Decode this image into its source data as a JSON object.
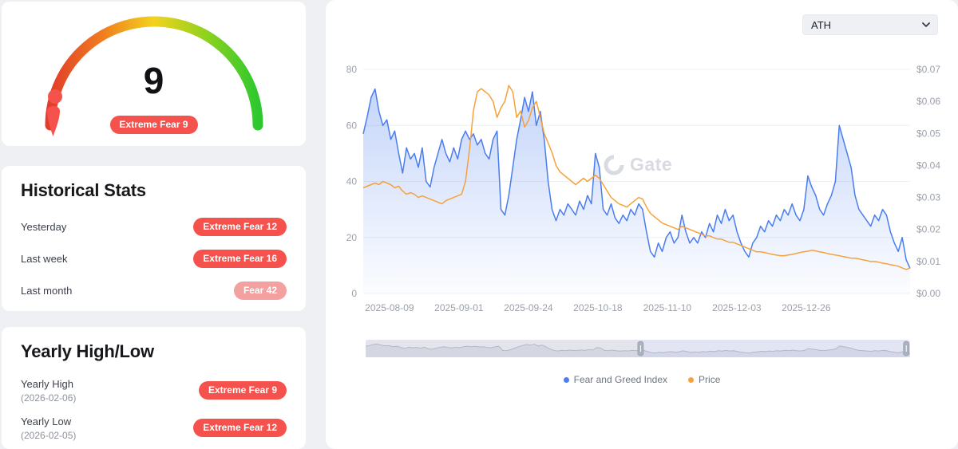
{
  "colors": {
    "extreme_badge": "#f5524d",
    "fear_badge": "#f2a0a0",
    "index_line": "#4a7df0",
    "price_line": "#f6a23c",
    "page_bg": "#eef0f3"
  },
  "gauge": {
    "value": "9",
    "badge": "Extreme Fear 9",
    "gradient": [
      "#e23d2a",
      "#f07c1f",
      "#f3d31e",
      "#8ed21f",
      "#2ec82e"
    ]
  },
  "historical": {
    "title": "Historical Stats",
    "rows": [
      {
        "label": "Yesterday",
        "badge": "Extreme Fear 12"
      },
      {
        "label": "Last week",
        "badge": "Extreme Fear 16"
      },
      {
        "label": "Last month",
        "badge": "Fear 42"
      }
    ]
  },
  "yearly": {
    "title": "Yearly High/Low",
    "rows": [
      {
        "label": "Yearly High",
        "date": "(2026-02-06)",
        "badge": "Extreme Fear 9"
      },
      {
        "label": "Yearly Low",
        "date": "(2026-02-05)",
        "badge": "Extreme Fear 12"
      }
    ]
  },
  "dropdown": {
    "value": "ATH"
  },
  "watermark": "Gate",
  "legend": [
    {
      "label": "Fear and Greed Index",
      "color": "#4a7df0"
    },
    {
      "label": "Price",
      "color": "#f6a23c"
    }
  ],
  "chart_data": {
    "type": "line",
    "title": "",
    "xlabel": "",
    "ylabel": "",
    "grid": true,
    "legend_position": "bottom",
    "left_axis": {
      "ticks": [
        0,
        20,
        40,
        60,
        80
      ],
      "range": [
        0,
        80
      ]
    },
    "right_axis": {
      "ticks": [
        "$0.00",
        "$0.01",
        "$0.02",
        "$0.03",
        "$0.04",
        "$0.05",
        "$0.06",
        "$0.07"
      ],
      "range": [
        0,
        0.07
      ]
    },
    "xticks": [
      {
        "label": "2025-08-09",
        "pos": 0.048
      },
      {
        "label": "2025-09-01",
        "pos": 0.175
      },
      {
        "label": "2025-09-24",
        "pos": 0.302
      },
      {
        "label": "2025-10-18",
        "pos": 0.429
      },
      {
        "label": "2025-11-10",
        "pos": 0.556
      },
      {
        "label": "2025-12-03",
        "pos": 0.683
      },
      {
        "label": "2025-12-26",
        "pos": 0.81
      }
    ],
    "brush": {
      "start_pos": 0.505,
      "end_pos": 0.993
    },
    "series": [
      {
        "name": "Fear and Greed Index",
        "axis": "left",
        "fill": true,
        "color": "#4a7df0",
        "values": [
          57,
          63,
          70,
          73,
          65,
          60,
          62,
          55,
          58,
          50,
          43,
          52,
          48,
          50,
          45,
          52,
          40,
          38,
          45,
          50,
          55,
          50,
          47,
          52,
          48,
          55,
          58,
          55,
          57,
          53,
          55,
          50,
          48,
          55,
          58,
          30,
          28,
          35,
          45,
          55,
          62,
          70,
          65,
          72,
          60,
          65,
          55,
          40,
          30,
          26,
          30,
          28,
          32,
          30,
          28,
          33,
          30,
          35,
          32,
          50,
          45,
          30,
          28,
          32,
          27,
          25,
          28,
          26,
          30,
          28,
          32,
          30,
          22,
          15,
          13,
          18,
          15,
          20,
          22,
          18,
          20,
          28,
          22,
          18,
          20,
          18,
          22,
          20,
          25,
          22,
          28,
          25,
          30,
          26,
          28,
          22,
          18,
          15,
          13,
          18,
          20,
          24,
          22,
          26,
          24,
          28,
          26,
          30,
          28,
          32,
          28,
          26,
          30,
          42,
          38,
          35,
          30,
          28,
          32,
          35,
          40,
          60,
          55,
          50,
          45,
          35,
          30,
          28,
          26,
          24,
          28,
          26,
          30,
          28,
          22,
          18,
          15,
          20,
          12,
          9
        ]
      },
      {
        "name": "Price",
        "axis": "right",
        "fill": false,
        "color": "#f6a23c",
        "values": [
          0.033,
          0.0335,
          0.034,
          0.0345,
          0.034,
          0.035,
          0.0345,
          0.034,
          0.033,
          0.0335,
          0.032,
          0.031,
          0.0315,
          0.031,
          0.03,
          0.0305,
          0.03,
          0.0295,
          0.029,
          0.0285,
          0.028,
          0.029,
          0.0295,
          0.03,
          0.0305,
          0.031,
          0.035,
          0.045,
          0.057,
          0.063,
          0.064,
          0.063,
          0.062,
          0.06,
          0.055,
          0.058,
          0.06,
          0.065,
          0.063,
          0.055,
          0.057,
          0.052,
          0.054,
          0.058,
          0.06,
          0.055,
          0.05,
          0.047,
          0.044,
          0.04,
          0.038,
          0.037,
          0.036,
          0.035,
          0.034,
          0.035,
          0.036,
          0.035,
          0.036,
          0.037,
          0.036,
          0.034,
          0.032,
          0.03,
          0.029,
          0.028,
          0.0275,
          0.027,
          0.028,
          0.029,
          0.03,
          0.0295,
          0.027,
          0.025,
          0.024,
          0.023,
          0.022,
          0.0215,
          0.021,
          0.0205,
          0.02,
          0.021,
          0.0205,
          0.02,
          0.0195,
          0.019,
          0.0185,
          0.018,
          0.018,
          0.0175,
          0.017,
          0.017,
          0.0165,
          0.016,
          0.016,
          0.0155,
          0.015,
          0.0145,
          0.014,
          0.0135,
          0.013,
          0.013,
          0.0128,
          0.0125,
          0.0122,
          0.012,
          0.0118,
          0.0118,
          0.012,
          0.0122,
          0.0125,
          0.0128,
          0.013,
          0.0132,
          0.0135,
          0.0133,
          0.013,
          0.0128,
          0.0125,
          0.0122,
          0.012,
          0.0118,
          0.0115,
          0.0113,
          0.011,
          0.011,
          0.0108,
          0.0105,
          0.0103,
          0.01,
          0.01,
          0.0098,
          0.0095,
          0.0093,
          0.009,
          0.0088,
          0.0085,
          0.008,
          0.0075,
          0.008
        ]
      }
    ]
  }
}
